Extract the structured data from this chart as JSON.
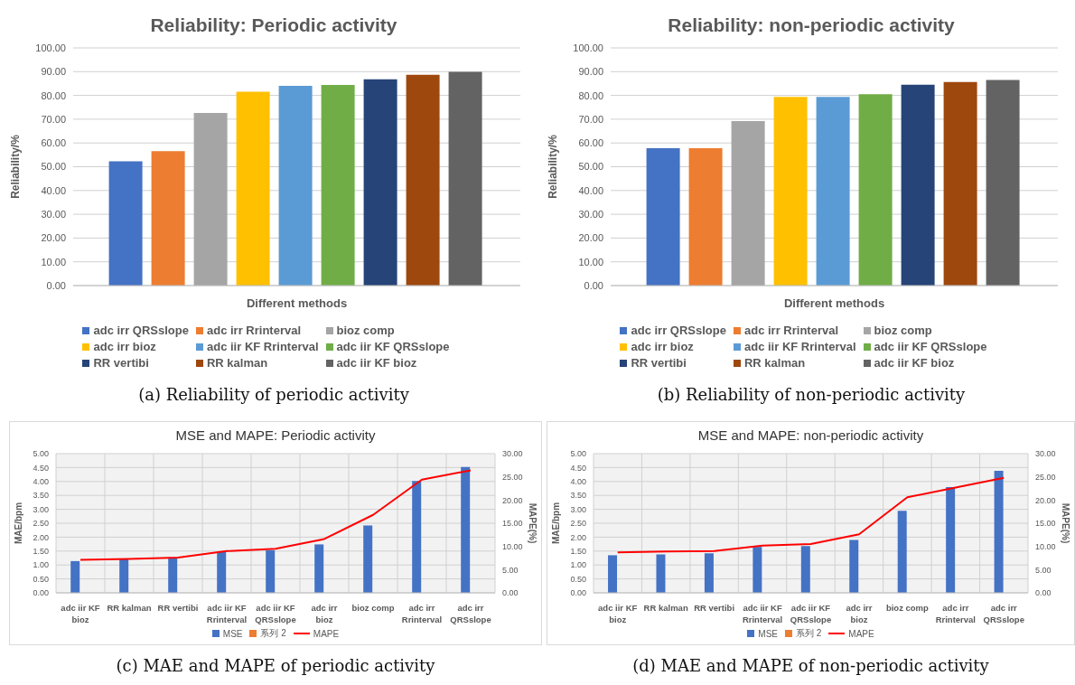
{
  "chart_data": [
    {
      "type": "bar",
      "title": "Reliability: Periodic activity",
      "xlabel": "Different methods",
      "ylabel": "Reliability/%",
      "categories": [
        null
      ],
      "series": [
        {
          "name": "adc irr QRSslope",
          "color": "#4472c4",
          "values": [
            52.3
          ]
        },
        {
          "name": "adc irr Rrinterval",
          "color": "#ed7d31",
          "values": [
            56.6
          ]
        },
        {
          "name": "bioz comp",
          "color": "#a5a5a5",
          "values": [
            72.6
          ]
        },
        {
          "name": "adc irr bioz",
          "color": "#ffc000",
          "values": [
            81.6
          ]
        },
        {
          "name": "adc iir KF Rrinterval",
          "color": "#5b9bd5",
          "values": [
            84.0
          ]
        },
        {
          "name": "adc iir KF QRSslope",
          "color": "#70ad47",
          "values": [
            84.4
          ]
        },
        {
          "name": "RR vertibi",
          "color": "#264478",
          "values": [
            86.8
          ]
        },
        {
          "name": "RR kalman",
          "color": "#9e480e",
          "values": [
            88.7
          ]
        },
        {
          "name": "adc iir KF bioz",
          "color": "#636363",
          "values": [
            89.9
          ]
        }
      ],
      "ylim": [
        0,
        100
      ],
      "yticks": [
        {
          "value": 0,
          "label": "0.00"
        },
        {
          "value": 10,
          "label": "10.00"
        },
        {
          "value": 20,
          "label": "20.00"
        },
        {
          "value": 30,
          "label": "30.00"
        },
        {
          "value": 40,
          "label": "40.00"
        },
        {
          "value": 50,
          "label": "50.00"
        },
        {
          "value": 60,
          "label": "60.00"
        },
        {
          "value": 70,
          "label": "70.00"
        },
        {
          "value": 80,
          "label": "80.00"
        },
        {
          "value": 90,
          "label": "90.00"
        },
        {
          "value": 100,
          "label": "100.00"
        }
      ],
      "grid": "y",
      "legend": "bottom",
      "annotations": [
        "(a) Reliability of periodic activity"
      ]
    },
    {
      "type": "bar",
      "title": "Reliability: non-periodic activity",
      "xlabel": "Different methods",
      "ylabel": "Reliability/%",
      "categories": [
        null
      ],
      "series": [
        {
          "name": "adc irr QRSslope",
          "color": "#4472c4",
          "values": [
            57.8
          ]
        },
        {
          "name": "adc irr Rrinterval",
          "color": "#ed7d31",
          "values": [
            57.8
          ]
        },
        {
          "name": "bioz comp",
          "color": "#a5a5a5",
          "values": [
            69.2
          ]
        },
        {
          "name": "adc irr bioz",
          "color": "#ffc000",
          "values": [
            79.4
          ]
        },
        {
          "name": "adc iir KF Rrinterval",
          "color": "#5b9bd5",
          "values": [
            79.4
          ]
        },
        {
          "name": "adc iir KF QRSslope",
          "color": "#70ad47",
          "values": [
            80.5
          ]
        },
        {
          "name": "RR vertibi",
          "color": "#264478",
          "values": [
            84.5
          ]
        },
        {
          "name": "RR kalman",
          "color": "#9e480e",
          "values": [
            85.6
          ]
        },
        {
          "name": "adc iir KF bioz",
          "color": "#636363",
          "values": [
            86.5
          ]
        }
      ],
      "ylim": [
        0,
        100
      ],
      "yticks": [
        {
          "value": 0,
          "label": "0.00"
        },
        {
          "value": 10,
          "label": "10.00"
        },
        {
          "value": 20,
          "label": "20.00"
        },
        {
          "value": 30,
          "label": "30.00"
        },
        {
          "value": 40,
          "label": "40.00"
        },
        {
          "value": 50,
          "label": "50.00"
        },
        {
          "value": 60,
          "label": "60.00"
        },
        {
          "value": 70,
          "label": "70.00"
        },
        {
          "value": 80,
          "label": "80.00"
        },
        {
          "value": 90,
          "label": "90.00"
        },
        {
          "value": 100,
          "label": "100.00"
        }
      ],
      "grid": "y",
      "legend": "bottom",
      "annotations": [
        "(b) Reliability of non-periodic activity"
      ]
    },
    {
      "type": "bar",
      "title": "MSE and MAPE: Periodic activity",
      "ylabel": "MAE/bpm",
      "y2label": "MAPE(%)",
      "categories": [
        "adc iir KF bioz",
        "RR kalman",
        "RR vertibi",
        "adc iir KF Rrinterval",
        "adc iir KF QRSslope",
        "adc irr bioz",
        "bioz comp",
        "adc irr Rrinterval",
        "adc irr QRSslope"
      ],
      "series": [
        {
          "name": "MSE",
          "color": "#4472c4",
          "values": [
            1.14,
            1.22,
            1.27,
            1.47,
            1.53,
            1.74,
            2.42,
            4.02,
            4.52
          ]
        },
        {
          "name": "系列 2",
          "color": "#ed7d31",
          "values": [
            null,
            null,
            null,
            null,
            null,
            null,
            null,
            null,
            null
          ]
        },
        {
          "name": "MAPE",
          "type": "line",
          "axis": "y2",
          "color": "#ff0000",
          "values": [
            7.1,
            7.3,
            7.6,
            9.0,
            9.5,
            11.6,
            16.8,
            24.4,
            26.4
          ]
        }
      ],
      "ylim": [
        0,
        5
      ],
      "yticks": [
        {
          "value": 0,
          "label": "0.00"
        },
        {
          "value": 0.5,
          "label": "0.50"
        },
        {
          "value": 1,
          "label": "1.00"
        },
        {
          "value": 1.5,
          "label": "1.50"
        },
        {
          "value": 2,
          "label": "2.00"
        },
        {
          "value": 2.5,
          "label": "2.50"
        },
        {
          "value": 3,
          "label": "3.00"
        },
        {
          "value": 3.5,
          "label": "3.50"
        },
        {
          "value": 4,
          "label": "4.00"
        },
        {
          "value": 4.5,
          "label": "4.50"
        },
        {
          "value": 5,
          "label": "5.00"
        }
      ],
      "y2lim": [
        0,
        30
      ],
      "y2ticks": [
        {
          "value": 0,
          "label": "0.00"
        },
        {
          "value": 5,
          "label": "5.00"
        },
        {
          "value": 10,
          "label": "10.00"
        },
        {
          "value": 15,
          "label": "15.00"
        },
        {
          "value": 20,
          "label": "20.00"
        },
        {
          "value": 25,
          "label": "25.00"
        },
        {
          "value": 30,
          "label": "30.00"
        }
      ],
      "grid": true,
      "legend": "bottom",
      "marker": "none",
      "annotations": [
        "(c) MAE and MAPE of periodic activity"
      ]
    },
    {
      "type": "bar",
      "title": "MSE and MAPE: non-periodic activity",
      "ylabel": "MAE/bpm",
      "y2label": "MAPE(%)",
      "categories": [
        "adc iir KF bioz",
        "RR kalman",
        "RR vertibi",
        "adc iir KF Rrinterval",
        "adc iir KF QRSslope",
        "adc irr bioz",
        "bioz comp",
        "adc irr Rrinterval",
        "adc irr QRSslope"
      ],
      "series": [
        {
          "name": "MSE",
          "color": "#4472c4",
          "values": [
            1.35,
            1.38,
            1.42,
            1.65,
            1.68,
            1.9,
            2.95,
            3.8,
            4.38
          ]
        },
        {
          "name": "系列 2",
          "color": "#ed7d31",
          "values": [
            null,
            null,
            null,
            null,
            null,
            null,
            null,
            null,
            null
          ]
        },
        {
          "name": "MAPE",
          "type": "line",
          "axis": "y2",
          "color": "#ff0000",
          "values": [
            8.7,
            8.9,
            9.0,
            10.2,
            10.5,
            12.6,
            20.6,
            22.7,
            24.8
          ]
        }
      ],
      "ylim": [
        0,
        5
      ],
      "yticks": [
        {
          "value": 0,
          "label": "0.00"
        },
        {
          "value": 0.5,
          "label": "0.50"
        },
        {
          "value": 1,
          "label": "1.00"
        },
        {
          "value": 1.5,
          "label": "1.50"
        },
        {
          "value": 2,
          "label": "2.00"
        },
        {
          "value": 2.5,
          "label": "2.50"
        },
        {
          "value": 3,
          "label": "3.00"
        },
        {
          "value": 3.5,
          "label": "3.50"
        },
        {
          "value": 4,
          "label": "4.00"
        },
        {
          "value": 4.5,
          "label": "4.50"
        },
        {
          "value": 5,
          "label": "5.00"
        }
      ],
      "y2lim": [
        0,
        30
      ],
      "y2ticks": [
        {
          "value": 0,
          "label": "0.00"
        },
        {
          "value": 5,
          "label": "5.00"
        },
        {
          "value": 10,
          "label": "10.00"
        },
        {
          "value": 15,
          "label": "15.00"
        },
        {
          "value": 20,
          "label": "20.00"
        },
        {
          "value": 25,
          "label": "25.00"
        },
        {
          "value": 30,
          "label": "30.00"
        }
      ],
      "grid": true,
      "legend": "bottom",
      "marker": "none",
      "annotations": [
        "(d) MAE and MAPE of non-periodic activity"
      ]
    }
  ]
}
